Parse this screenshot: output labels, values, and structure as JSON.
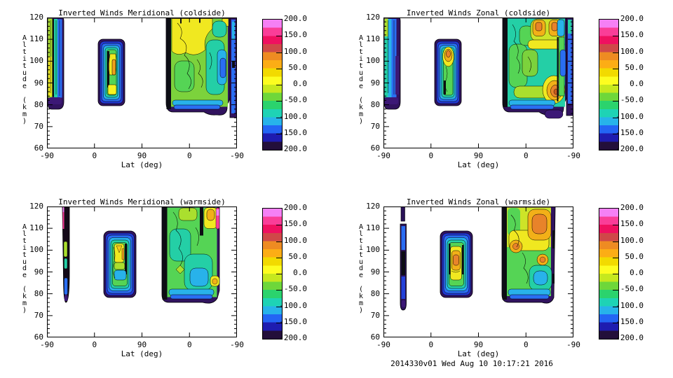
{
  "shared": {
    "xlabel": "Lat (deg)",
    "ylabel": "Altitude (km)",
    "x_tick_labels": [
      "-90",
      "0",
      "90",
      "0",
      "-90"
    ],
    "y_tick_labels": [
      "120",
      "110",
      "100",
      "90",
      "80",
      "70",
      "60"
    ],
    "colorbar_labels": [
      "200.0",
      "150.0",
      "100.0",
      "50.0",
      "0.0",
      "-50.0",
      "-100.0",
      "-150.0",
      "-200.0"
    ]
  },
  "panels": [
    {
      "title": "Inverted Winds Meridional (coldside)"
    },
    {
      "title": "Inverted Winds Zonal (coldside)"
    },
    {
      "title": "Inverted Winds Meridional (warmside)"
    },
    {
      "title": "Inverted Winds Zonal (warmside)"
    }
  ],
  "footer": "2014330v01 Wed Aug 10 10:17:21 2016",
  "colors": {
    "background": "#ffffff",
    "frame": "#000000",
    "colorbar_stops": [
      "#f580f5",
      "#fa3d98",
      "#ef1060",
      "#cf4848",
      "#ee8b22",
      "#fcad15",
      "#f2da00",
      "#fdfd20",
      "#c6e81e",
      "#6ed73a",
      "#2bd36d",
      "#1ed3b5",
      "#27b3ea",
      "#2365f4",
      "#1e1cb0",
      "#230f3a"
    ]
  },
  "chart_data": [
    {
      "type": "heatmap",
      "subtype": "filled-contour",
      "title": "Inverted Winds Meridional (coldside)",
      "xlabel": "Lat (deg)",
      "ylabel": "Altitude (km)",
      "x_tick_labels": [
        "-90",
        "0",
        "90",
        "0",
        "-90"
      ],
      "x_axis_note": "along-track latitude, -90 to 90 and back to -90",
      "ylim": [
        60,
        120
      ],
      "y_ticks": [
        60,
        70,
        80,
        90,
        100,
        110,
        120
      ],
      "colorbar": {
        "range": [
          -200,
          200
        ],
        "tick_values": [
          200,
          150,
          100,
          50,
          0,
          -50,
          -100,
          -150,
          -200
        ],
        "contour_step": 25
      },
      "regions": [
        {
          "lat_span": "-90 to -68 (ascending)",
          "alt_span_km": [
            78,
            120
          ],
          "summary": "narrow swath: yellow-green core ~0 to +50 on poleward edge, cyan/teal -50 to -100, blue -100 to -150 band, near -200 dark rim and bottom cap"
        },
        {
          "lat_span": "8 to 52",
          "alt_span_km": [
            80,
            110
          ],
          "summary": "isolated cell: dark rim -175 to -200, blue/cyan rings -150 to -75, green ~-25, yellow core +25 with orange sliver +75 near 90-103 km, bright yellow +25 at 82-86 km"
        },
        {
          "lat_span": "55 through 0 to -90 (descending)",
          "alt_span_km": [
            75,
            120
          ],
          "summary": "broad swath: yellow +25 to +50 at 105-120 km near lat 0-30, green -25 body, teal -50 to -75 patches, cyan/blue -75 to -150 near -90 edge, black band ~-200 on equatorward edge and purple bottom rim"
        }
      ]
    },
    {
      "type": "heatmap",
      "subtype": "filled-contour",
      "title": "Inverted Winds Zonal (coldside)",
      "xlabel": "Lat (deg)",
      "ylabel": "Altitude (km)",
      "x_tick_labels": [
        "-90",
        "0",
        "90",
        "0",
        "-90"
      ],
      "ylim": [
        60,
        120
      ],
      "y_ticks": [
        60,
        70,
        80,
        90,
        100,
        110,
        120
      ],
      "colorbar": {
        "range": [
          -200,
          200
        ],
        "tick_values": [
          200,
          150,
          100,
          50,
          0,
          -50,
          -100,
          -150,
          -200
        ],
        "contour_step": 25
      },
      "regions": [
        {
          "lat_span": "-90 to -68 (ascending)",
          "alt_span_km": [
            78,
            120
          ],
          "summary": "narrow swath: teal/cyan -50 to -100 with green top, blue -125 to -150 column, dark purple edge and bottom cap"
        },
        {
          "lat_span": "8 to 52",
          "alt_span_km": [
            80,
            110
          ],
          "summary": "isolated cell: green ~-25 interior with amber/orange spot +50 to +100 near 100-105 km, cyan/blue rings, dark rim"
        },
        {
          "lat_span": "55 through 0 to -90 (descending)",
          "alt_span_km": [
            75,
            120
          ],
          "summary": "broad swath: teal -50 body, amber lobes +50 to +100 at 110-118 km, strong orange +75 to +100 cell at 80-90 km near lat -60, blue -100 to -150 at right edge, purple bottom rim"
        }
      ]
    },
    {
      "type": "heatmap",
      "subtype": "filled-contour",
      "title": "Inverted Winds Meridional (warmside)",
      "xlabel": "Lat (deg)",
      "ylabel": "Altitude (km)",
      "x_tick_labels": [
        "-90",
        "0",
        "90",
        "0",
        "-90"
      ],
      "ylim": [
        60,
        120
      ],
      "y_ticks": [
        60,
        70,
        80,
        90,
        100,
        110,
        120
      ],
      "colorbar": {
        "range": [
          -200,
          200
        ],
        "tick_values": [
          200,
          150,
          100,
          50,
          0,
          -50,
          -100,
          -150,
          -200
        ],
        "contour_step": 25
      },
      "regions": [
        {
          "lat_span": "-65 to -72 (narrow spike)",
          "alt_span_km": [
            76,
            120
          ],
          "summary": "mostly off-scale dark (~-200) column; magenta sliver +150 to +200 at 110-120 km, yellow-green patch +0 to +25 near 96-102 km, blue -125 tip at 78-84 km"
        },
        {
          "lat_span": "20 to 75",
          "alt_span_km": [
            78,
            110
          ],
          "summary": "isolated cell: yellow core +25 to +50 at 98-108 km, yellow-green mid, cyan -75 at 88-95 km, blue -125 to -150 lower rings, dark rim"
        },
        {
          "lat_span": "115 through 0 to -60 (descending)",
          "alt_span_km": [
            76,
            120
          ],
          "summary": "broad swath: green -25 body, teal/cyan -50 to -100 patches, yellow/amber +25 to +75 rings top near lat -35, magenta +150 to +200 sliver at edge 112-120 km, yellow +25 cell at ~85 km edge, blue bottom band, black borders"
        }
      ]
    },
    {
      "type": "heatmap",
      "subtype": "filled-contour",
      "title": "Inverted Winds Zonal (warmside)",
      "xlabel": "Lat (deg)",
      "ylabel": "Altitude (km)",
      "x_tick_labels": [
        "-90",
        "0",
        "90",
        "0",
        "-90"
      ],
      "ylim": [
        60,
        120
      ],
      "y_ticks": [
        60,
        70,
        80,
        90,
        100,
        110,
        120
      ],
      "colorbar": {
        "range": [
          -200,
          200
        ],
        "tick_values": [
          200,
          150,
          100,
          50,
          0,
          -50,
          -100,
          -150,
          -200
        ],
        "contour_step": 25
      },
      "regions": [
        {
          "lat_span": "-65 to -70 (narrow spike)",
          "alt_span_km": [
            72,
            120
          ],
          "summary": "thin fragmented column: dark indigo/blue -125 to -200 with black segments"
        },
        {
          "lat_span": "20 to 75",
          "alt_span_km": [
            78,
            110
          ],
          "summary": "isolated cell: amber/orange core +50 to +100 at 88-100 km, yellow ring +25, green/cyan/blue rings outward, black bands flanking core, dark rim"
        },
        {
          "lat_span": "115 through 0 to -60 (descending)",
          "alt_span_km": [
            76,
            120
          ],
          "summary": "broad swath: yellow/amber +25 to +75 above 95 km, orange +75 to +100 cells at 108-118 km (lat ~-40) and ~100 km (lat ~15), teal -50 to -75 oval at 80-92 km, green -25 lower body, cyan/blue bottom band, black equatorward border"
        }
      ]
    }
  ]
}
